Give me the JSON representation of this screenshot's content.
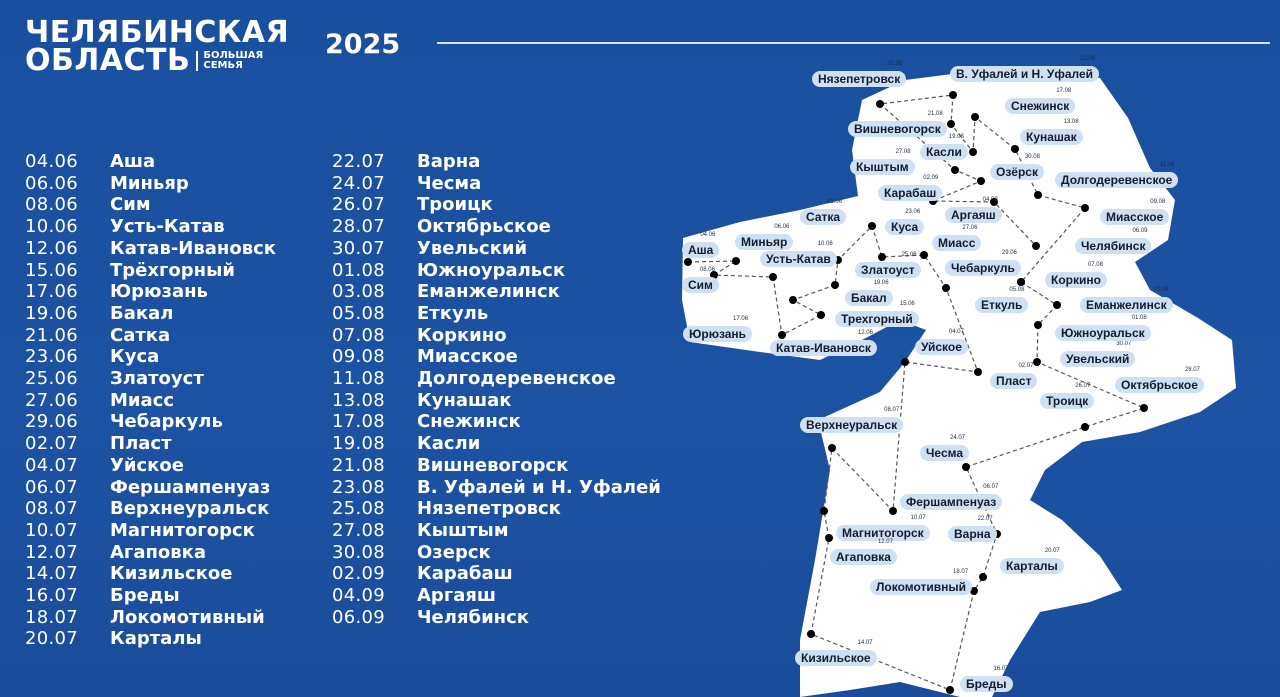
{
  "header": {
    "title_line1": "ЧЕЛЯБИНСКАЯ",
    "title_line2": "ОБЛАСТЬ",
    "subtitle_line1": "БОЛЬШАЯ",
    "subtitle_line2": "СЕМЬЯ",
    "year": "2025"
  },
  "colors": {
    "background": "#1d52a3",
    "map_land": "#ffffff",
    "label_bg": "#cfe0f4",
    "dot": "#000000"
  },
  "schedule": {
    "columns": [
      [
        {
          "date": "04.06",
          "city": "Аша"
        },
        {
          "date": "06.06",
          "city": "Миньяр"
        },
        {
          "date": "08.06",
          "city": "Сим"
        },
        {
          "date": "10.06",
          "city": "Усть-Катав"
        },
        {
          "date": "12.06",
          "city": "Катав-Ивановск"
        },
        {
          "date": "15.06",
          "city": "Трёхгорный"
        },
        {
          "date": "17.06",
          "city": "Юрюзань"
        },
        {
          "date": "19.06",
          "city": "Бакал"
        },
        {
          "date": "21.06",
          "city": "Сатка"
        },
        {
          "date": "23.06",
          "city": "Куса"
        },
        {
          "date": "25.06",
          "city": "Златоуст"
        },
        {
          "date": "27.06",
          "city": "Миасс"
        },
        {
          "date": "29.06",
          "city": "Чебаркуль"
        },
        {
          "date": "02.07",
          "city": "Пласт"
        },
        {
          "date": "04.07",
          "city": "Уйское"
        },
        {
          "date": "06.07",
          "city": "Фершампенуаз"
        },
        {
          "date": "08.07",
          "city": "Верхнеуральск"
        },
        {
          "date": "10.07",
          "city": "Магнитогорск"
        },
        {
          "date": "12.07",
          "city": "Агаповка"
        },
        {
          "date": "14.07",
          "city": "Кизильское"
        },
        {
          "date": "16.07",
          "city": "Бреды"
        },
        {
          "date": "18.07",
          "city": "Локомотивный"
        },
        {
          "date": "20.07",
          "city": "Карталы"
        }
      ],
      [
        {
          "date": "22.07",
          "city": "Варна"
        },
        {
          "date": "24.07",
          "city": "Чесма"
        },
        {
          "date": "26.07",
          "city": "Троицк"
        },
        {
          "date": "28.07",
          "city": "Октябрьское"
        },
        {
          "date": "30.07",
          "city": "Увельский"
        },
        {
          "date": "01.08",
          "city": "Южноуральск"
        },
        {
          "date": "03.08",
          "city": "Еманжелинск"
        },
        {
          "date": "05.08",
          "city": "Еткуль"
        },
        {
          "date": "07.08",
          "city": "Коркино"
        },
        {
          "date": "09.08",
          "city": "Миасское"
        },
        {
          "date": "11.08",
          "city": "Долгодеревенское"
        },
        {
          "date": "13.08",
          "city": "Кунашак"
        },
        {
          "date": "17.08",
          "city": "Снежинск"
        },
        {
          "date": "19.08",
          "city": "Касли"
        },
        {
          "date": "21.08",
          "city": "Вишневогорск"
        },
        {
          "date": "23.08",
          "city": "В. Уфалей и Н. Уфалей"
        },
        {
          "date": "25.08",
          "city": "Нязепетровск"
        },
        {
          "date": "27.08",
          "city": "Кыштым"
        },
        {
          "date": "30.08",
          "city": "Озерск"
        },
        {
          "date": "02.09",
          "city": "Карабаш"
        },
        {
          "date": "04.09",
          "city": "Аргаяш"
        },
        {
          "date": "06.09",
          "city": "Челябинск"
        }
      ]
    ]
  },
  "map": {
    "labels": [
      {
        "city": "Аша",
        "date": "04.06"
      },
      {
        "city": "Миньяр",
        "date": "06.06"
      },
      {
        "city": "Сим",
        "date": "08.06"
      },
      {
        "city": "Усть-Катав",
        "date": "10.06"
      },
      {
        "city": "Катав-Ивановск",
        "date": "12.06"
      },
      {
        "city": "Трехгорный",
        "date": "15.06"
      },
      {
        "city": "Юрюзань",
        "date": "17.06"
      },
      {
        "city": "Бакал",
        "date": "19.06"
      },
      {
        "city": "Сатка",
        "date": "21.06"
      },
      {
        "city": "Куса",
        "date": "23.06"
      },
      {
        "city": "Златоуст",
        "date": "25.06"
      },
      {
        "city": "Миасс",
        "date": "27.06"
      },
      {
        "city": "Чебаркуль",
        "date": "29.06"
      },
      {
        "city": "Пласт",
        "date": "02.07"
      },
      {
        "city": "Уйское",
        "date": "04.07"
      },
      {
        "city": "Фершампенуаз",
        "date": "06.07"
      },
      {
        "city": "Верхнеуральск",
        "date": "08.07"
      },
      {
        "city": "Магнитогорск",
        "date": "10.07"
      },
      {
        "city": "Агаповка",
        "date": "12.07"
      },
      {
        "city": "Кизильское",
        "date": "14.07"
      },
      {
        "city": "Бреды",
        "date": "16.07"
      },
      {
        "city": "Локомотивный",
        "date": "18.07"
      },
      {
        "city": "Карталы",
        "date": "20.07"
      },
      {
        "city": "Варна",
        "date": "22.07"
      },
      {
        "city": "Чесма",
        "date": "24.07"
      },
      {
        "city": "Троицк",
        "date": "26.07"
      },
      {
        "city": "Октябрьское",
        "date": "28.07"
      },
      {
        "city": "Увельский",
        "date": "30.07"
      },
      {
        "city": "Южноуральск",
        "date": "01.08"
      },
      {
        "city": "Еманжелинск",
        "date": "03.08"
      },
      {
        "city": "Еткуль",
        "date": "05.08"
      },
      {
        "city": "Коркино",
        "date": "07.08"
      },
      {
        "city": "Миасское",
        "date": "09.08"
      },
      {
        "city": "Долгодеревенское",
        "date": "11.08"
      },
      {
        "city": "Кунашак",
        "date": "13.08"
      },
      {
        "city": "Снежинск",
        "date": "17.08"
      },
      {
        "city": "Касли",
        "date": "19.08"
      },
      {
        "city": "Вишневогорск",
        "date": "21.08"
      },
      {
        "city": "В. Уфалей и Н. Уфалей",
        "date": "23.08"
      },
      {
        "city": "Нязепетровск",
        "date": "25.08"
      },
      {
        "city": "Кыштым",
        "date": "27.08"
      },
      {
        "city": "Озёрск",
        "date": "30.08"
      },
      {
        "city": "Карабаш",
        "date": "02.09"
      },
      {
        "city": "Аргаяш",
        "date": "04.09"
      },
      {
        "city": "Челябинск",
        "date": "06.09"
      }
    ]
  }
}
